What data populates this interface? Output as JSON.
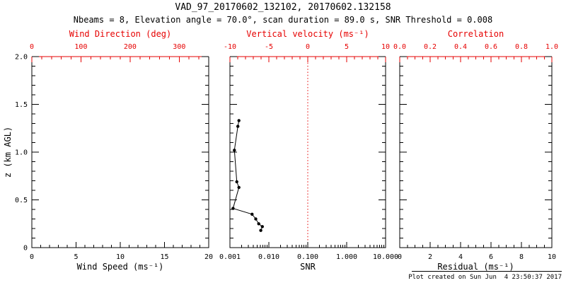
{
  "title": "VAD_97_20170602_132102, 20170602.132158",
  "subtitle": "Nbeams = 8, Elevation angle = 70.0°, scan duration = 89.0 s, SNR Threshold = 0.008",
  "footer": "Plot created on Sun Jun  4 23:50:37 2017",
  "colors": {
    "axis": "#000000",
    "accent_red": "#e60000",
    "background": "#ffffff"
  },
  "chart_data": [
    {
      "type": "scatter",
      "id": "wind",
      "xaxis_bottom": {
        "label": "Wind Speed (ms⁻¹)",
        "min": 0,
        "max": 20,
        "tick_values": [
          0,
          5,
          10,
          15,
          20
        ],
        "tick_labels": [
          "0",
          "5",
          "10",
          "15",
          "20"
        ],
        "minor_step": 1
      },
      "xaxis_top": {
        "label": "Wind Direction (deg)",
        "min": 0,
        "max": 360,
        "tick_values": [
          0,
          100,
          200,
          300
        ],
        "tick_labels": [
          "0",
          "100",
          "200",
          "300"
        ],
        "minor_step": 20
      },
      "yaxis": {
        "label": "z (km AGL)",
        "min": 0,
        "max": 2,
        "tick_values": [
          0,
          0.5,
          1,
          1.5,
          2
        ],
        "tick_labels": [
          "0",
          "0.5",
          "1.0",
          "1.5",
          "2.0"
        ],
        "minor_step": 0.1,
        "show_labels": true
      },
      "series": []
    },
    {
      "type": "line",
      "id": "snr",
      "xaxis_bottom": {
        "label": "SNR",
        "scale": "log",
        "min": 0.001,
        "max": 10,
        "tick_values": [
          0.001,
          0.01,
          0.1,
          1,
          10
        ],
        "tick_labels": [
          "0.001",
          "0.010",
          "0.100",
          "1.000",
          "10.000"
        ]
      },
      "xaxis_top": {
        "label": "Vertical velocity (ms⁻¹)",
        "min": -10,
        "max": 10,
        "tick_values": [
          -10,
          -5,
          0,
          5,
          10
        ],
        "tick_labels": [
          "-10",
          "-5",
          "0",
          "5",
          "10"
        ],
        "minor_step": 1
      },
      "yaxis": {
        "min": 0,
        "max": 2,
        "tick_values": [
          0,
          0.5,
          1,
          1.5,
          2
        ],
        "minor_step": 0.1,
        "show_labels": false
      },
      "refline": {
        "axis": "top",
        "value": 0,
        "color": "#e60000",
        "style": "dotted"
      },
      "series": [
        {
          "name": "SNR profile",
          "color": "#000000",
          "marker": "circle",
          "points": [
            {
              "z": 1.33,
              "snr": 0.0017
            },
            {
              "z": 1.27,
              "snr": 0.0016
            },
            {
              "z": 1.02,
              "snr": 0.0013
            },
            {
              "z": 0.69,
              "snr": 0.0015
            },
            {
              "z": 0.63,
              "snr": 0.0017
            },
            {
              "z": 0.41,
              "snr": 0.0012
            },
            {
              "z": 0.35,
              "snr": 0.0037
            },
            {
              "z": 0.3,
              "snr": 0.0046
            },
            {
              "z": 0.25,
              "snr": 0.0055
            },
            {
              "z": 0.22,
              "snr": 0.0068
            },
            {
              "z": 0.18,
              "snr": 0.0062
            }
          ]
        }
      ]
    },
    {
      "type": "scatter",
      "id": "residual",
      "xaxis_bottom": {
        "label": "Residual (ms⁻¹)",
        "min": 0,
        "max": 10,
        "tick_values": [
          0,
          2,
          4,
          6,
          8,
          10
        ],
        "tick_labels": [
          "0",
          "2",
          "4",
          "6",
          "8",
          "10"
        ],
        "minor_step": 0.5
      },
      "xaxis_top": {
        "label": "Correlation",
        "min": 0,
        "max": 1,
        "tick_values": [
          0,
          0.2,
          0.4,
          0.6,
          0.8,
          1
        ],
        "tick_labels": [
          "0.0",
          "0.2",
          "0.4",
          "0.6",
          "0.8",
          "1.0"
        ],
        "minor_step": 0.05
      },
      "yaxis": {
        "min": 0,
        "max": 2,
        "tick_values": [
          0,
          0.5,
          1,
          1.5,
          2
        ],
        "minor_step": 0.1,
        "show_labels": false
      },
      "series": []
    }
  ]
}
